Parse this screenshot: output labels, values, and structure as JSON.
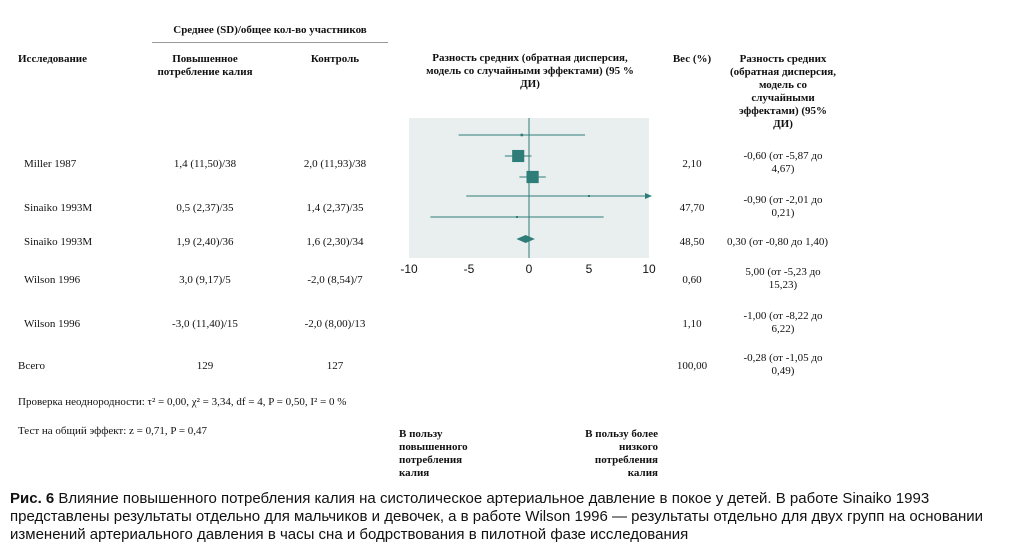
{
  "header": {
    "group_header": "Среднее (SD)/общее кол-во участников",
    "col_study": "Исследование",
    "col_treatment": "Повышенное потребление калия",
    "col_control": "Контроль",
    "col_plot": "Разность средних (обратная дисперсия, модель со случайными эффектами) (95 % ДИ)",
    "col_weight": "Вес (%)",
    "col_effect": "Разность средних (обратная дисперсия, модель со случайными эффектами) (95% ДИ)"
  },
  "rows": [
    {
      "study": "Miller 1987",
      "treatment": "1,4 (11,50)/38",
      "control": "2,0 (11,93)/38",
      "weight": "2,10",
      "effect": "-0,60 (от -5,87 до 4,67)"
    },
    {
      "study": "Sinaiko 1993M",
      "treatment": "0,5 (2,37)/35",
      "control": "1,4 (2,37)/35",
      "weight": "47,70",
      "effect": "-0,90 (от -2,01 до 0,21)"
    },
    {
      "study": "Sinaiko 1993M",
      "treatment": "1,9 (2,40)/36",
      "control": "1,6 (2,30)/34",
      "weight": "48,50",
      "effect": "0,30 (от -0,80 до 1,40)"
    },
    {
      "study": "Wilson 1996",
      "treatment": "3,0 (9,17)/5",
      "control": "-2,0 (8,54)/7",
      "weight": "0,60",
      "effect": "5,00 (от -5,23 до 15,23)"
    },
    {
      "study": "Wilson 1996",
      "treatment": "-3,0 (11,40)/15",
      "control": "-2,0 (8,00)/13",
      "weight": "1,10",
      "effect": "-1,00 (от -8,22 до 6,22)"
    }
  ],
  "total": {
    "label": "Всего",
    "treatment": "129",
    "control": "127",
    "weight": "100,00",
    "effect": "-0,28 (от -1,05 до 0,49)"
  },
  "heterogeneity": "Проверка неоднородности: τ² = 0,00, χ² = 3,34, df = 4, P = 0,50, I² = 0 %",
  "overall_test": "Тест на общий эффект: z = 0,71, P = 0,47",
  "favours_left": "В пользу повышенного потребления калия",
  "favours_right": "В пользу более низкого потребления калия",
  "caption": {
    "label": "Рис. 6",
    "text": "Влияние повышенного потребления калия на систолическое артериальное давление в покое у детей. В работе Sinaiko 1993 представлены результаты отдельно для мальчиков и девочек, а в работе Wilson 1996 — результаты отдельно для двух групп на основании изменений артериального давления в часы сна и бодрствования в пилотной фазе исследования"
  },
  "chart_data": {
    "type": "forest",
    "xlim": [
      -10,
      10
    ],
    "x_ticks": [
      -10,
      -5,
      0,
      5,
      10
    ],
    "x_tick_labels": [
      "-10",
      "-5",
      "0",
      "5",
      "10"
    ],
    "accent_color": "#2f7d79",
    "panel_color": "#e9eeee",
    "studies": [
      {
        "mean": -0.6,
        "lo": -5.87,
        "hi": 4.67,
        "weight": 2.1
      },
      {
        "mean": -0.9,
        "lo": -2.01,
        "hi": 0.21,
        "weight": 47.7
      },
      {
        "mean": 0.3,
        "lo": -0.8,
        "hi": 1.4,
        "weight": 48.5
      },
      {
        "mean": 5.0,
        "lo": -5.23,
        "hi": 15.23,
        "weight": 0.6
      },
      {
        "mean": -1.0,
        "lo": -8.22,
        "hi": 6.22,
        "weight": 1.1
      }
    ],
    "overall": {
      "mean": -0.28,
      "lo": -1.05,
      "hi": 0.49
    }
  }
}
